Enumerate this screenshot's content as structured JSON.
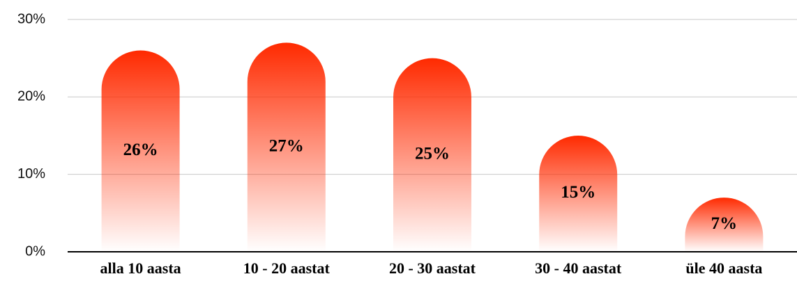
{
  "chart_data": {
    "type": "bar",
    "categories": [
      "alla 10 aasta",
      "10 - 20 aastat",
      "20 - 30 aastat",
      "30 - 40 aastat",
      "üle 40 aasta"
    ],
    "values": [
      26,
      27,
      25,
      15,
      7
    ],
    "value_labels": [
      "26%",
      "27%",
      "25%",
      "15%",
      "7%"
    ],
    "color": "#ff2a00",
    "ylim": [
      0,
      30
    ],
    "yticks": [
      {
        "value": 0,
        "label": "0%"
      },
      {
        "value": 10,
        "label": "10%"
      },
      {
        "value": 20,
        "label": "20%"
      },
      {
        "value": 30,
        "label": "30%"
      }
    ],
    "grid": true
  }
}
